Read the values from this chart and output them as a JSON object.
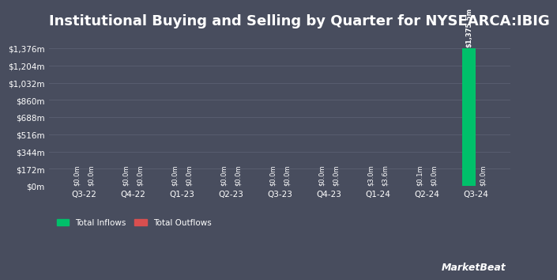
{
  "title": "Institutional Buying and Selling by Quarter for NYSEARCA:IBIG",
  "quarters": [
    "Q3-22",
    "Q4-22",
    "Q1-23",
    "Q2-23",
    "Q3-23",
    "Q4-23",
    "Q1-24",
    "Q2-24",
    "Q3-24"
  ],
  "inflows": [
    0.0,
    0.0,
    0.0,
    0.0,
    0.0,
    0.0,
    3.0,
    0.1,
    1375.5
  ],
  "outflows": [
    0.0,
    0.0,
    0.0,
    0.0,
    0.0,
    0.0,
    3.6,
    0.0,
    0.0
  ],
  "bar_labels_inflow": [
    "$0.0m",
    "$0.0m",
    "$0.0m",
    "$0.0m",
    "$0.0m",
    "$0.0m",
    "$3.0m",
    "$0.1m",
    "$1,375.5m"
  ],
  "bar_labels_outflow": [
    "$0.0m",
    "$0.0m",
    "$0.0m",
    "$0.0m",
    "$0.0m",
    "$0.0m",
    "$3.6m",
    "$0.0m",
    "$0.0m"
  ],
  "inflow_color": "#00c06a",
  "outflow_color": "#d94f4f",
  "background_color": "#484d5e",
  "plot_bg_color": "#484d5e",
  "text_color": "#ffffff",
  "grid_color": "#5a5f72",
  "ytick_labels": [
    "$0m",
    "$172m",
    "$344m",
    "$516m",
    "$688m",
    "$860m",
    "$1,032m",
    "$1,204m",
    "$1,376m"
  ],
  "ytick_values": [
    0,
    172,
    344,
    516,
    688,
    860,
    1032,
    1204,
    1376
  ],
  "ylim": [
    0,
    1500
  ],
  "legend_inflow": "Total Inflows",
  "legend_outflow": "Total Outflows",
  "bar_width": 0.28,
  "title_fontsize": 13,
  "tick_fontsize": 7.5,
  "label_fontsize": 6,
  "watermark": "MarketBeat"
}
